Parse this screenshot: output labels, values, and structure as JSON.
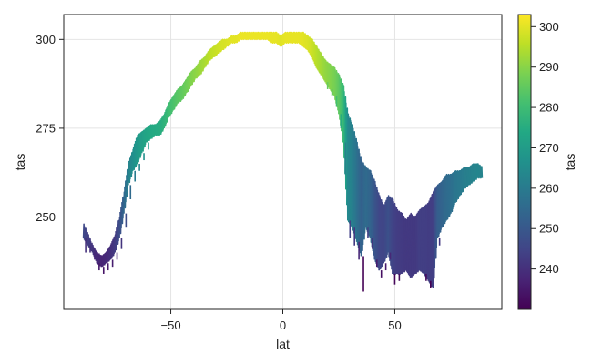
{
  "chart_data": {
    "type": "line",
    "title": "",
    "xlabel": "lat",
    "ylabel": "tas",
    "xlim": [
      -97.8,
      97.8
    ],
    "ylim": [
      224,
      307
    ],
    "xticks": [
      -50,
      0,
      50
    ],
    "xtick_labels": [
      "−50",
      "0",
      "50"
    ],
    "yticks": [
      250,
      275,
      300
    ],
    "ytick_labels": [
      "250",
      "275",
      "300"
    ],
    "grid": true,
    "legend": "none",
    "series": [
      {
        "color_by": "tas",
        "colormap": "viridis",
        "x": [
          -89,
          -87,
          -85,
          -83,
          -81,
          -79,
          -77,
          -75,
          -73,
          -71,
          -69,
          -67,
          -65,
          -63,
          -61,
          -59,
          -57,
          -55,
          -53,
          -51,
          -49,
          -47,
          -45,
          -43,
          -41,
          -39,
          -37,
          -35,
          -33,
          -31,
          -29,
          -27,
          -25,
          -23,
          -21,
          -19,
          -17,
          -15,
          -13,
          -11,
          -9,
          -7,
          -5,
          -3,
          -1,
          1,
          3,
          5,
          7,
          9,
          11,
          13,
          15,
          17,
          19,
          21,
          23,
          25,
          27,
          29,
          31,
          33,
          35,
          37,
          39,
          41,
          43,
          45,
          47,
          49,
          51,
          53,
          55,
          57,
          59,
          61,
          63,
          65,
          67,
          69,
          71,
          73,
          75,
          77,
          79,
          81,
          83,
          85,
          87,
          89
        ],
        "ymin": [
          244,
          242,
          240,
          237,
          236,
          237,
          238,
          240,
          244,
          251,
          259,
          263,
          265,
          268,
          271,
          272,
          273,
          273,
          275,
          278,
          280,
          282,
          283,
          285,
          287,
          289,
          290,
          292,
          294,
          295,
          296,
          297,
          298,
          299,
          299,
          300,
          300,
          300,
          300,
          300,
          300,
          300,
          299,
          299,
          298,
          299,
          299,
          299,
          299,
          298,
          297,
          295,
          292,
          290,
          288,
          286,
          284,
          279,
          271,
          249,
          247,
          243,
          239,
          247,
          244,
          238,
          235,
          237,
          240,
          234,
          234,
          234,
          235,
          233,
          234,
          235,
          234,
          232,
          230,
          244,
          247,
          249,
          251,
          254,
          256,
          258,
          259,
          260,
          261,
          261
        ],
        "ymax": [
          248,
          245,
          242,
          240,
          239,
          240,
          242,
          245,
          250,
          257,
          265,
          269,
          273,
          274,
          275,
          276,
          276,
          277,
          279,
          282,
          284,
          286,
          287,
          289,
          291,
          292,
          294,
          295,
          297,
          298,
          299,
          300,
          300,
          301,
          301,
          302,
          302,
          302,
          302,
          302,
          302,
          302,
          302,
          302,
          301,
          302,
          302,
          302,
          302,
          302,
          301,
          300,
          298,
          296,
          294,
          293,
          292,
          290,
          287,
          279,
          276,
          271,
          266,
          264,
          263,
          260,
          256,
          253,
          256,
          255,
          252,
          251,
          249,
          251,
          250,
          252,
          253,
          254,
          257,
          259,
          260,
          262,
          262,
          263,
          263,
          264,
          264,
          265,
          265,
          264
        ],
        "min_tick": [
          240,
          240,
          238,
          235,
          234,
          235,
          236,
          238,
          241,
          247,
          255,
          260,
          263,
          266,
          269,
          271,
          272,
          272,
          274,
          277,
          279,
          281,
          282,
          284,
          286,
          288,
          289,
          291,
          293,
          294,
          295,
          296,
          297,
          298,
          298,
          299,
          299,
          299,
          299,
          299,
          299,
          299,
          298,
          298,
          297,
          298,
          298,
          298,
          298,
          297,
          296,
          294,
          291,
          289,
          286,
          284,
          281,
          275,
          262,
          244,
          242,
          238,
          229,
          244,
          241,
          236,
          233,
          235,
          238,
          231,
          232,
          233,
          234,
          232,
          233,
          234,
          232,
          230,
          229,
          242,
          246,
          248,
          250,
          253,
          255,
          257,
          258,
          259,
          260,
          260
        ]
      }
    ],
    "colorbar": {
      "label": "tas",
      "range": [
        230,
        303
      ],
      "ticks": [
        240,
        250,
        260,
        270,
        280,
        290,
        300
      ],
      "tick_labels": [
        "240",
        "250",
        "260",
        "270",
        "280",
        "290",
        "300"
      ]
    }
  }
}
